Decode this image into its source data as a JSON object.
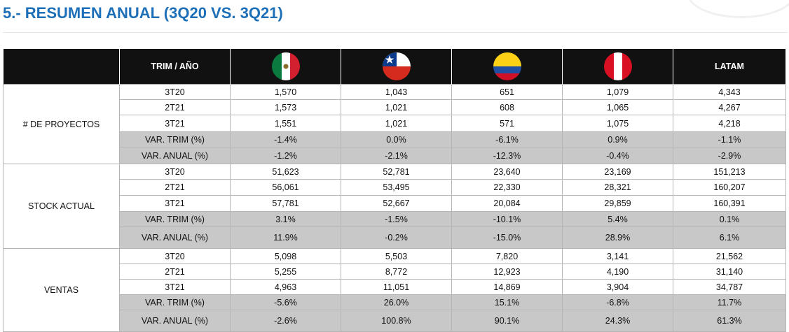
{
  "title": "5.- RESUMEN ANUAL (3Q20 VS. 3Q21)",
  "header": {
    "col_period": "TRIM / AÑO",
    "flags": [
      "mexico-flag-icon",
      "chile-flag-icon",
      "colombia-flag-icon",
      "peru-flag-icon"
    ],
    "col_latam": "LATAM"
  },
  "colors": {
    "title": "#1d6fb8",
    "header_bg": "#111111",
    "var_row_bg": "#c8c8c8"
  },
  "groups": [
    {
      "name": "# DE PROYECTOS",
      "rows": [
        {
          "label": "3T20",
          "values": [
            "1,570",
            "1,043",
            "651",
            "1,079",
            "4,343"
          ]
        },
        {
          "label": "2T21",
          "values": [
            "1,573",
            "1,021",
            "608",
            "1,065",
            "4,267"
          ]
        },
        {
          "label": "3T21",
          "values": [
            "1,551",
            "1,021",
            "571",
            "1,075",
            "4,218"
          ]
        },
        {
          "label": "VAR. TRIM  (%)",
          "values": [
            "-1.4%",
            "0.0%",
            "-6.1%",
            "0.9%",
            "-1.1%"
          ]
        },
        {
          "label": "VAR. ANUAL  (%)",
          "values": [
            "-1.2%",
            "-2.1%",
            "-12.3%",
            "-0.4%",
            "-2.9%"
          ]
        }
      ]
    },
    {
      "name": "STOCK ACTUAL",
      "rows": [
        {
          "label": "3T20",
          "values": [
            "51,623",
            "52,781",
            "23,640",
            "23,169",
            "151,213"
          ]
        },
        {
          "label": "2T21",
          "values": [
            "56,061",
            "53,495",
            "22,330",
            "28,321",
            "160,207"
          ]
        },
        {
          "label": "3T21",
          "values": [
            "57,781",
            "52,667",
            "20,084",
            "29,859",
            "160,391"
          ]
        },
        {
          "label": "VAR. TRIM  (%)",
          "values": [
            "3.1%",
            "-1.5%",
            "-10.1%",
            "5.4%",
            "0.1%"
          ]
        },
        {
          "label": "VAR. ANUAL  (%)",
          "values": [
            "11.9%",
            "-0.2%",
            "-15.0%",
            "28.9%",
            "6.1%"
          ]
        }
      ]
    },
    {
      "name": "VENTAS",
      "rows": [
        {
          "label": "3T20",
          "values": [
            "5,098",
            "5,503",
            "7,820",
            "3,141",
            "21,562"
          ]
        },
        {
          "label": "2T21",
          "values": [
            "5,255",
            "8,772",
            "12,923",
            "4,190",
            "31,140"
          ]
        },
        {
          "label": "3T21",
          "values": [
            "4,963",
            "11,051",
            "14,869",
            "3,904",
            "34,787"
          ]
        },
        {
          "label": "VAR. TRIM  (%)",
          "values": [
            "-5.6%",
            "26.0%",
            "15.1%",
            "-6.8%",
            "11.7%"
          ]
        },
        {
          "label": "VAR. ANUAL  (%)",
          "values": [
            "-2.6%",
            "100.8%",
            "90.1%",
            "24.3%",
            "61.3%"
          ]
        }
      ]
    }
  ]
}
